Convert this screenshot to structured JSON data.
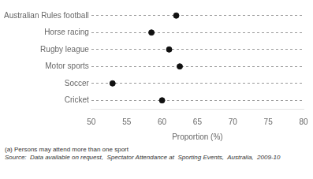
{
  "chart_data": {
    "type": "dot",
    "categories": [
      "Australian Rules football",
      "Horse racing",
      "Rugby league",
      "Motor sports",
      "Soccer",
      "Cricket"
    ],
    "values": [
      62.0,
      58.5,
      61.0,
      62.5,
      53.0,
      60.0
    ],
    "xlim": [
      50,
      80
    ],
    "xticks": [
      50,
      55,
      60,
      65,
      70,
      75,
      80
    ],
    "xlabel": "Proportion (%)",
    "marker": "circle",
    "color": "#111111",
    "line_style": "dashed",
    "annotations": [
      "(a) Persons may attend more than one sport",
      "Source:  Data available on request,  Spectator Attendance at  Sporting Events,  Australia,  2009-10"
    ]
  }
}
